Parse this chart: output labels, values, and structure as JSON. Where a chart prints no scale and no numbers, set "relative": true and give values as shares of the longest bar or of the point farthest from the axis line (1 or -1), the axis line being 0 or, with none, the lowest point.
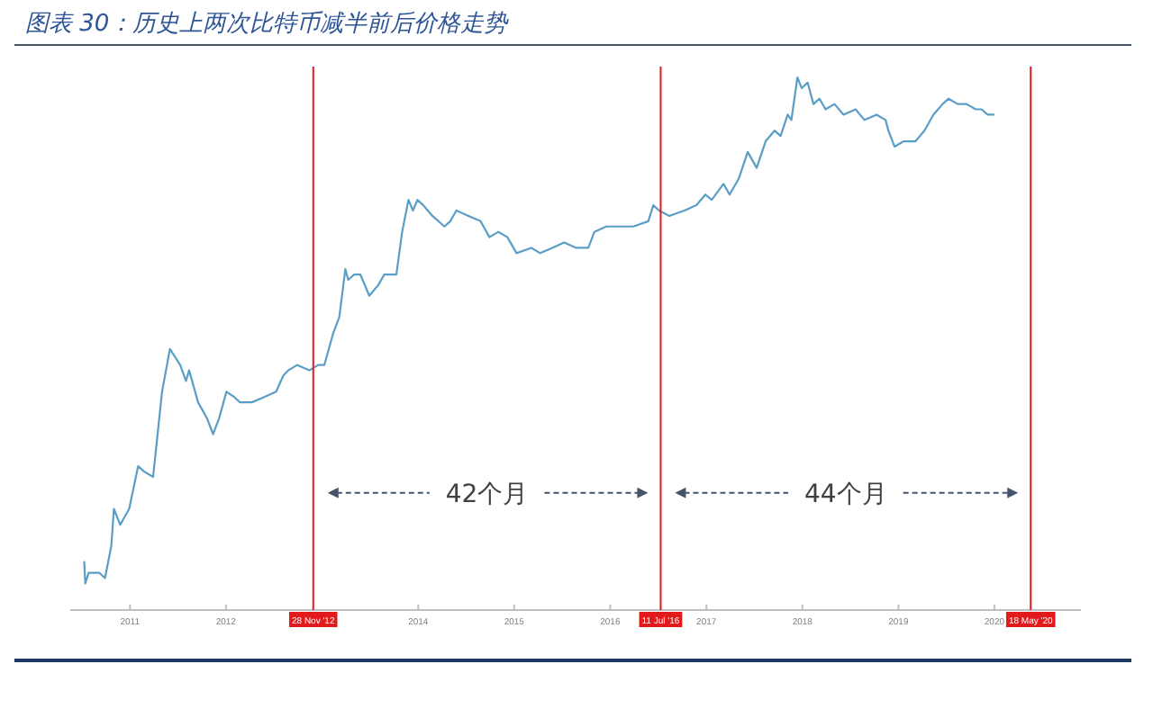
{
  "chart_data": {
    "type": "line",
    "title": "图表 30：历史上两次比特币减半前后价格走势",
    "relative": true,
    "x": [
      "2010-07-11",
      "2010-07-15",
      "2010-07-28",
      "2010-09-06",
      "2010-09-28",
      "2010-10-22",
      "2010-11-01",
      "2010-11-25",
      "2010-12-29",
      "2011-02-01",
      "2011-02-24",
      "2011-03-30",
      "2011-05-03",
      "2011-06-02",
      "2011-07-11",
      "2011-08-02",
      "2011-08-14",
      "2011-09-17",
      "2011-10-21",
      "2011-11-13",
      "2011-12-06",
      "2012-01-03",
      "2012-02-01",
      "2012-02-23",
      "2012-04-09",
      "2012-05-26",
      "2012-07-10",
      "2012-08-06",
      "2012-08-25",
      "2012-09-28",
      "2012-11-13",
      "2012-12-17",
      "2013-01-09",
      "2013-02-12",
      "2013-03-07",
      "2013-03-30",
      "2013-04-10",
      "2013-05-03",
      "2013-05-26",
      "2013-06-29",
      "2013-08-02",
      "2013-08-25",
      "2013-10-10",
      "2013-11-01",
      "2013-11-25",
      "2013-12-12",
      "2013-12-29",
      "2014-01-20",
      "2014-02-24",
      "2014-04-11",
      "2014-05-03",
      "2014-05-26",
      "2014-07-11",
      "2014-08-26",
      "2014-09-29",
      "2014-11-02",
      "2014-12-06",
      "2015-01-10",
      "2015-03-07",
      "2015-04-10",
      "2015-05-26",
      "2015-07-10",
      "2015-08-25",
      "2015-10-10",
      "2015-11-02",
      "2015-12-17",
      "2016-02-01",
      "2016-03-29",
      "2016-05-25",
      "2016-06-13",
      "2016-07-05",
      "2016-08-13",
      "2016-10-09",
      "2016-11-24",
      "2016-12-28",
      "2017-01-21",
      "2017-03-07",
      "2017-03-30",
      "2017-05-04",
      "2017-06-07",
      "2017-07-11",
      "2017-08-14",
      "2017-09-17",
      "2017-10-10",
      "2017-11-06",
      "2017-11-20",
      "2017-12-13",
      "2017-12-29",
      "2018-01-21",
      "2018-02-12",
      "2018-03-07",
      "2018-03-30",
      "2018-05-03",
      "2018-06-06",
      "2018-07-22",
      "2018-08-25",
      "2018-10-10",
      "2018-11-13",
      "2018-11-24",
      "2018-12-17",
      "2019-01-21",
      "2019-03-07",
      "2019-04-10",
      "2019-05-14",
      "2019-06-18",
      "2019-07-11",
      "2019-08-14",
      "2019-09-17",
      "2019-10-22",
      "2019-11-13",
      "2019-12-06",
      "2019-12-29"
    ],
    "series": [
      {
        "color": "#5a9ec6",
        "values": [
          0.09,
          0.05,
          0.07,
          0.07,
          0.06,
          0.12,
          0.19,
          0.16,
          0.19,
          0.27,
          0.26,
          0.25,
          0.41,
          0.49,
          0.46,
          0.43,
          0.45,
          0.39,
          0.36,
          0.33,
          0.36,
          0.41,
          0.4,
          0.39,
          0.39,
          0.4,
          0.41,
          0.44,
          0.45,
          0.46,
          0.45,
          0.46,
          0.46,
          0.52,
          0.55,
          0.64,
          0.62,
          0.63,
          0.63,
          0.59,
          0.61,
          0.63,
          0.63,
          0.71,
          0.77,
          0.75,
          0.77,
          0.76,
          0.74,
          0.72,
          0.73,
          0.75,
          0.74,
          0.73,
          0.7,
          0.71,
          0.7,
          0.67,
          0.68,
          0.67,
          0.68,
          0.69,
          0.68,
          0.68,
          0.71,
          0.72,
          0.72,
          0.72,
          0.73,
          0.76,
          0.75,
          0.74,
          0.75,
          0.76,
          0.78,
          0.77,
          0.8,
          0.78,
          0.81,
          0.86,
          0.83,
          0.88,
          0.9,
          0.89,
          0.93,
          0.92,
          1,
          0.98,
          0.99,
          0.95,
          0.96,
          0.94,
          0.95,
          0.93,
          0.94,
          0.92,
          0.93,
          0.92,
          0.9,
          0.87,
          0.88,
          0.88,
          0.9,
          0.93,
          0.95,
          0.96,
          0.95,
          0.95,
          0.94,
          0.94,
          0.93,
          0.93
        ]
      }
    ],
    "xlim": [
      "2010-05-19",
      "2020-11-25"
    ],
    "xticks": [
      "2011",
      "2012",
      "2014",
      "2015",
      "2016",
      "2017",
      "2018",
      "2019",
      "2020"
    ],
    "ref_lines": [
      {
        "axis": "x",
        "value": "2012-11-28",
        "label": "28 Nov '12",
        "color": "#e31a1c"
      },
      {
        "axis": "x",
        "value": "2016-07-11",
        "label": "11 Jul '16",
        "color": "#e31a1c"
      },
      {
        "axis": "x",
        "value": "2020-05-18",
        "label": "18 May '20",
        "color": "#e31a1c"
      }
    ],
    "annotations": [
      "42个月",
      "44个月"
    ]
  }
}
